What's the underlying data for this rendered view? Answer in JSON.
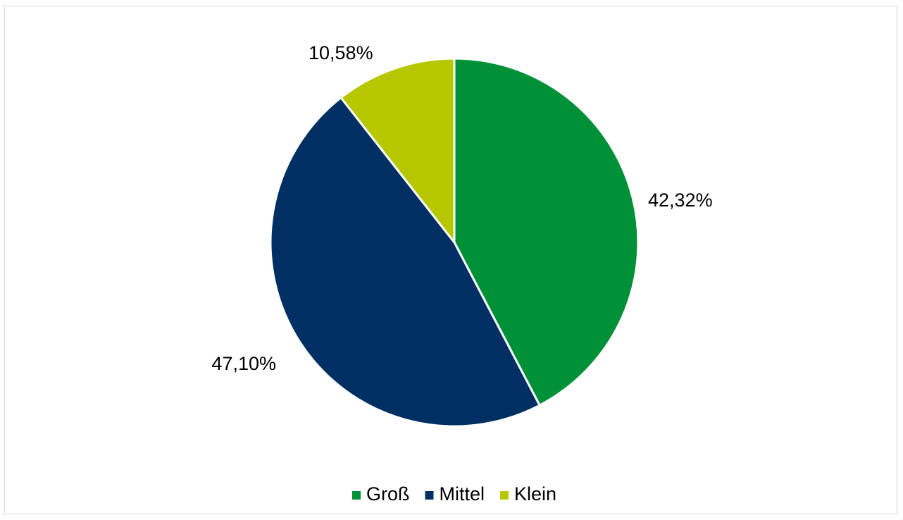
{
  "chart_data": {
    "type": "pie",
    "categories": [
      "Groß",
      "Mittel",
      "Klein"
    ],
    "values": [
      42.32,
      47.1,
      10.58
    ],
    "labels": [
      "42,32%",
      "47,10%",
      "10,58%"
    ],
    "colors": [
      "#009138",
      "#003063",
      "#b6c700"
    ],
    "legend_position": "bottom",
    "start_angle_deg": 0,
    "direction": "clockwise"
  }
}
